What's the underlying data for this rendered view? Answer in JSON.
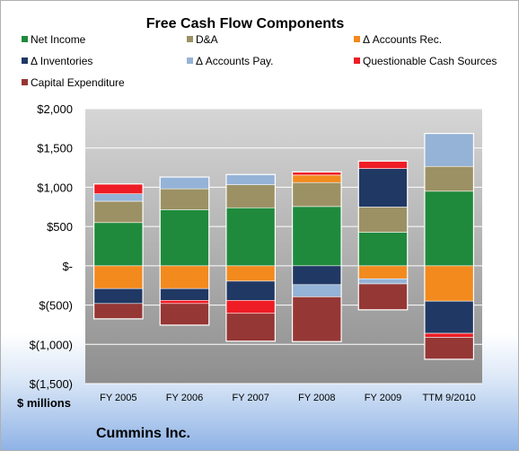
{
  "chart_data": {
    "type": "bar",
    "stacked": true,
    "title": "Free Cash Flow Components",
    "unit_label": "$ millions",
    "company": "Cummins Inc.",
    "ylim": [
      -1500,
      2000
    ],
    "y_ticks": [
      2000,
      1500,
      1000,
      500,
      0,
      -500,
      -1000,
      -1500
    ],
    "y_tick_labels": [
      "$2,000",
      "$1,500",
      "$1,000",
      "$500",
      "$-",
      "$(500)",
      "$(1,000)",
      "$(1,500)"
    ],
    "grid": true,
    "legend_position": "top",
    "categories": [
      "FY 2005",
      "FY 2006",
      "FY 2007",
      "FY 2008",
      "FY 2009",
      "TTM 9/2010"
    ],
    "series": [
      {
        "name": "Net Income",
        "color": "#1f8a3c",
        "values": [
          550,
          715,
          739,
          755,
          428,
          950
        ]
      },
      {
        "name": "D&A",
        "color": "#9c9164",
        "values": [
          272,
          265,
          293,
          305,
          320,
          315
        ]
      },
      {
        "name": "Δ Accounts Rec.",
        "color": "#f28a1e",
        "values": [
          -290,
          -290,
          -195,
          95,
          -165,
          -450
        ]
      },
      {
        "name": "Δ Inventories",
        "color": "#203864",
        "values": [
          -190,
          -150,
          -245,
          -240,
          490,
          -410
        ]
      },
      {
        "name": "Δ Accounts Pay.",
        "color": "#95b3d7",
        "values": [
          95,
          150,
          130,
          -155,
          -65,
          420
        ]
      },
      {
        "name": "Questionable Cash Sources",
        "color": "#ee1c24",
        "values": [
          125,
          -40,
          -165,
          40,
          95,
          -50
        ]
      },
      {
        "name": "Capital Expenditure",
        "color": "#953735",
        "values": [
          -195,
          -275,
          -355,
          -570,
          -330,
          -280
        ]
      }
    ]
  }
}
